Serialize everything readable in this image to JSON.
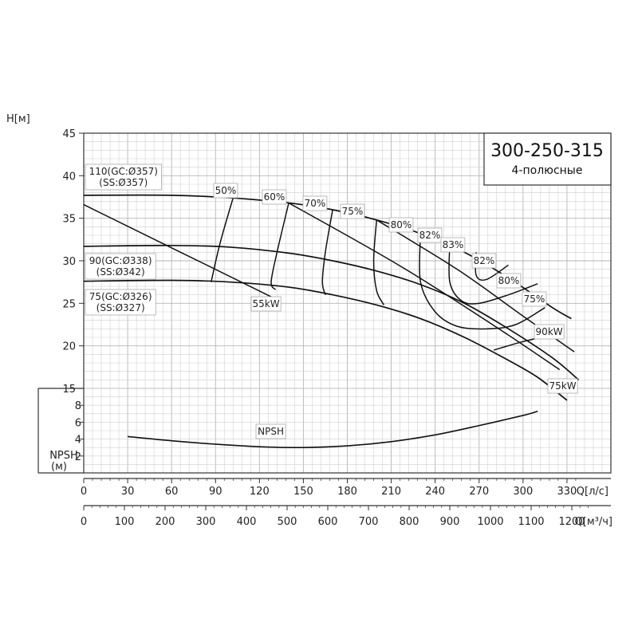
{
  "chart_data": {
    "type": "line",
    "title": "300-250-315",
    "subtitle": "4-полюсные",
    "h_axis": {
      "label": "H[м]",
      "ticks": [
        15,
        20,
        25,
        30,
        35,
        40,
        45
      ],
      "range": [
        15,
        45
      ]
    },
    "npsh_axis": {
      "label_line1": "NPSH",
      "label_line2": "(м)",
      "ticks": [
        2,
        4,
        6,
        8
      ],
      "range": [
        0,
        10
      ]
    },
    "q_axis_ls": {
      "label": "Q[л/с]",
      "ticks": [
        0,
        30,
        60,
        90,
        120,
        150,
        180,
        210,
        240,
        270,
        300,
        330
      ],
      "range": [
        0,
        360
      ]
    },
    "q_axis_m3h": {
      "label": "Q[м³/ч]",
      "ticks": [
        0,
        100,
        200,
        300,
        400,
        500,
        600,
        700,
        800,
        900,
        1000,
        1100,
        1200
      ]
    },
    "impeller_labels": [
      {
        "name": "110",
        "line1": "110(GC:Ø357)",
        "line2": "(SS:Ø357)"
      },
      {
        "name": "90",
        "line1": "90(GC:Ø338)",
        "line2": "(SS:Ø342)"
      },
      {
        "name": "75",
        "line1": "75(GC:Ø326)",
        "line2": "(SS:Ø327)"
      }
    ],
    "head_curves": [
      {
        "impeller": "110",
        "x": [
          0,
          60,
          100,
          140,
          170,
          200,
          230,
          260,
          290,
          320,
          333
        ],
        "y": [
          37.7,
          37.7,
          37.4,
          36.8,
          36.0,
          34.8,
          33.2,
          31.0,
          28.0,
          24.5,
          23.2
        ]
      },
      {
        "impeller": "90",
        "x": [
          0,
          60,
          100,
          140,
          170,
          200,
          230,
          260,
          290,
          320,
          338
        ],
        "y": [
          31.7,
          31.8,
          31.6,
          30.9,
          30.0,
          28.8,
          27.2,
          25.0,
          22.0,
          18.6,
          16.0
        ]
      },
      {
        "impeller": "75",
        "x": [
          0,
          60,
          100,
          140,
          170,
          200,
          230,
          260,
          290,
          310,
          330
        ],
        "y": [
          27.6,
          27.7,
          27.5,
          26.9,
          26.0,
          24.8,
          23.2,
          21.0,
          18.3,
          16.3,
          13.6
        ]
      }
    ],
    "power_curves": [
      {
        "name": "55kW",
        "label": "55kW",
        "x": [
          0,
          130
        ],
        "y": [
          36.6,
          25.6
        ]
      },
      {
        "name": "75kW",
        "label": "75kW",
        "x": [
          140,
          215,
          280,
          325
        ],
        "y": [
          36.8,
          29.5,
          22.4,
          17.2
        ]
      },
      {
        "name": "90kW",
        "label": "90kW",
        "x": [
          200,
          255,
          300,
          335
        ],
        "y": [
          34.8,
          29.0,
          23.5,
          19.3
        ]
      }
    ],
    "efficiency_curves": [
      {
        "label": "50%",
        "x": [
          102,
          93,
          87
        ],
        "y": [
          37.4,
          32.0,
          27.5
        ]
      },
      {
        "label": "60%",
        "x": [
          140,
          132,
          128,
          131
        ],
        "y": [
          36.8,
          31.0,
          27.5,
          26.6
        ]
      },
      {
        "label": "70%",
        "x": [
          170,
          165,
          163,
          165
        ],
        "y": [
          36.0,
          31.0,
          27.5,
          26.0
        ]
      },
      {
        "label": "75%",
        "x": [
          200,
          198,
          200,
          205
        ],
        "y": [
          34.8,
          30.0,
          26.5,
          24.8
        ]
      },
      {
        "label": "80%",
        "x": [
          230,
          230,
          240,
          255,
          275,
          295,
          315
        ],
        "y": [
          33.2,
          27.5,
          24.0,
          22.3,
          22.0,
          22.5,
          24.5
        ]
      },
      {
        "label": "82%",
        "x": [
          250,
          250,
          258,
          270,
          290,
          310
        ],
        "y": [
          32.0,
          27.5,
          25.3,
          25.0,
          26.0,
          27.3
        ]
      },
      {
        "label": "83%",
        "x": [
          268,
          268,
          275,
          290
        ],
        "y": [
          31.0,
          28.3,
          27.8,
          29.5
        ]
      },
      {
        "label": "82%",
        "x": [],
        "y": []
      },
      {
        "label": "80%",
        "x": [],
        "y": []
      },
      {
        "label": "75%",
        "x": [
          280,
          300,
          325
        ],
        "y": [
          19.5,
          20.5,
          21.5
        ]
      }
    ],
    "npsh_curve": {
      "label": "NPSH",
      "x": [
        30,
        60,
        90,
        120,
        150,
        180,
        210,
        240,
        270,
        300,
        310
      ],
      "y": [
        4.3,
        3.8,
        3.4,
        3.1,
        3.0,
        3.2,
        3.7,
        4.5,
        5.6,
        6.8,
        7.3
      ]
    }
  }
}
